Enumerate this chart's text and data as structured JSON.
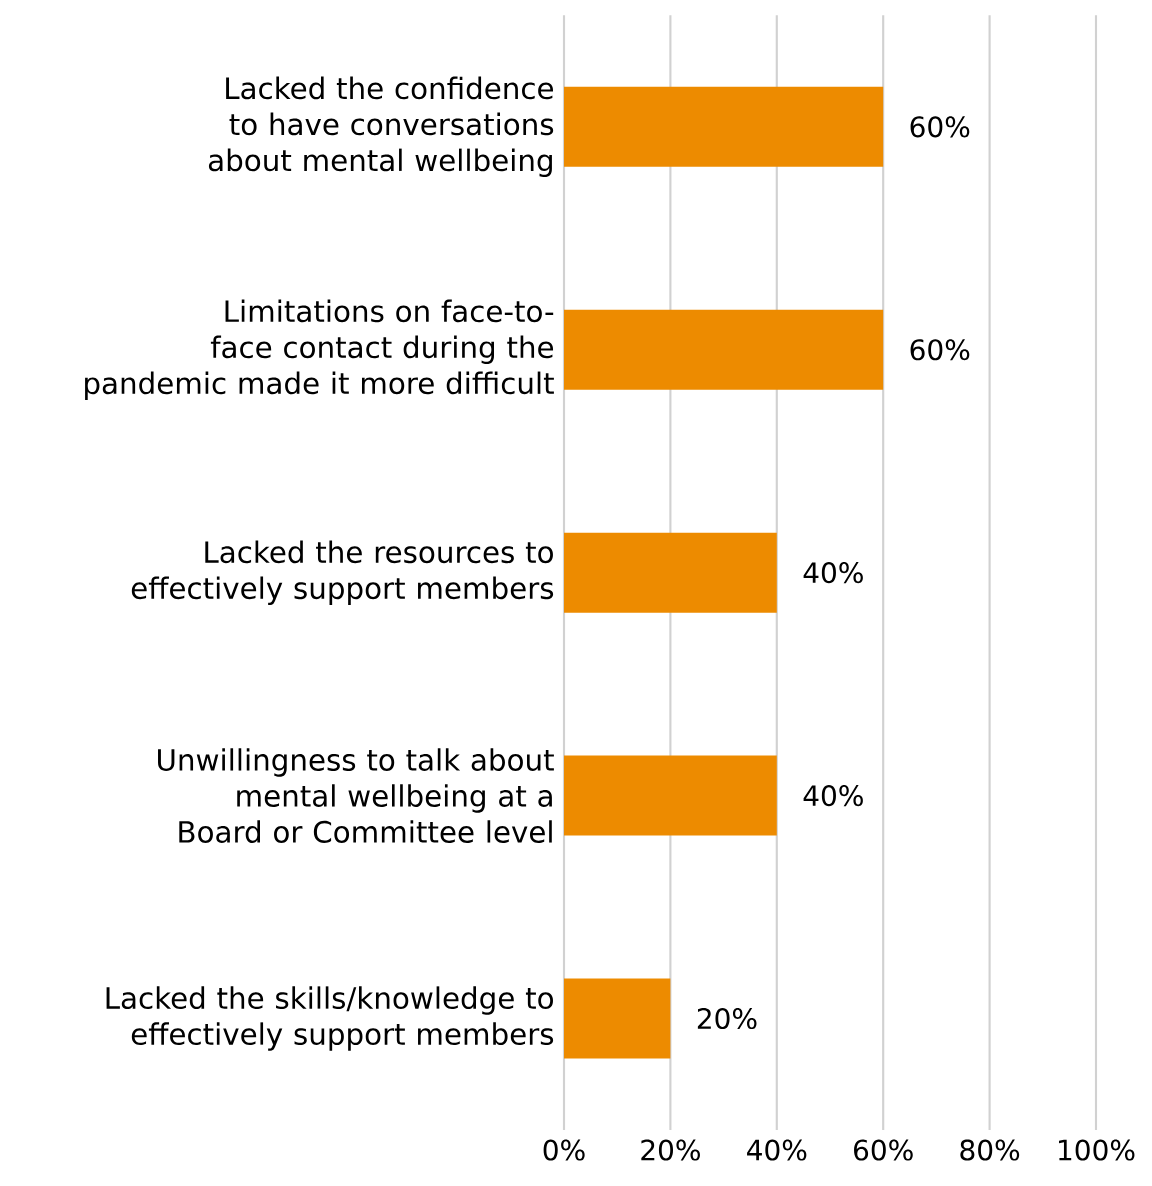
{
  "chart_data": {
    "type": "bar",
    "orientation": "horizontal",
    "categories": [
      "Lacked the confidence to have conversations about mental wellbeing",
      "Limitations on face-to-face contact during the pandemic made it more difficult",
      "Lacked the resources to effectively support members",
      "Unwillingness to talk about mental wellbeing at a Board or Committee level",
      "Lacked the skills/knowledge to effectively support members"
    ],
    "values": [
      60,
      60,
      40,
      40,
      20
    ],
    "value_labels": [
      "60%",
      "60%",
      "40%",
      "40%",
      "20%"
    ],
    "color": "#ed8b00",
    "xlim": [
      0,
      100
    ],
    "xticks": [
      {
        "value": 0,
        "label": "0%"
      },
      {
        "value": 20,
        "label": "20%"
      },
      {
        "value": 40,
        "label": "40%"
      },
      {
        "value": 60,
        "label": "60%"
      },
      {
        "value": 80,
        "label": "80%"
      },
      {
        "value": 100,
        "label": "100%"
      }
    ],
    "grid": "x"
  }
}
